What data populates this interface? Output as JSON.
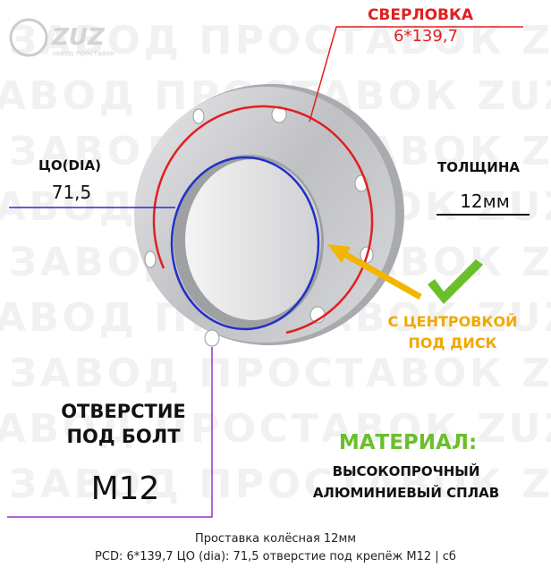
{
  "logo": {
    "brand": "ZUZ",
    "tagline": "завод проставок"
  },
  "watermark": "ЗАВОД ПРОСТАВОК ZUZ",
  "drilling": {
    "label": "СВЕРЛОВКА",
    "value": "6*139,7"
  },
  "center_bore": {
    "label": "ЦО(DIA)",
    "value": "71,5"
  },
  "thickness": {
    "label": "ТОЛЩИНА",
    "value": "12мм"
  },
  "centering": {
    "line1": "С ЦЕНТРОВКОЙ",
    "line2": "ПОД ДИСК"
  },
  "bolt_hole": {
    "line1": "ОТВЕРСТИЕ",
    "line2": "ПОД БОЛТ",
    "value": "M12"
  },
  "material": {
    "label": "МАТЕРИАЛ:",
    "line1": "ВЫСОКОПРОЧНЫЙ",
    "line2": "АЛЮМИНИЕВЫЙ СПЛАВ"
  },
  "caption": {
    "line1": "Проставка колёсная 12мм",
    "line2": "PCD: 6*139,7 ЦО (dia): 71,5 отверстие под крепёж M12 | сб"
  }
}
